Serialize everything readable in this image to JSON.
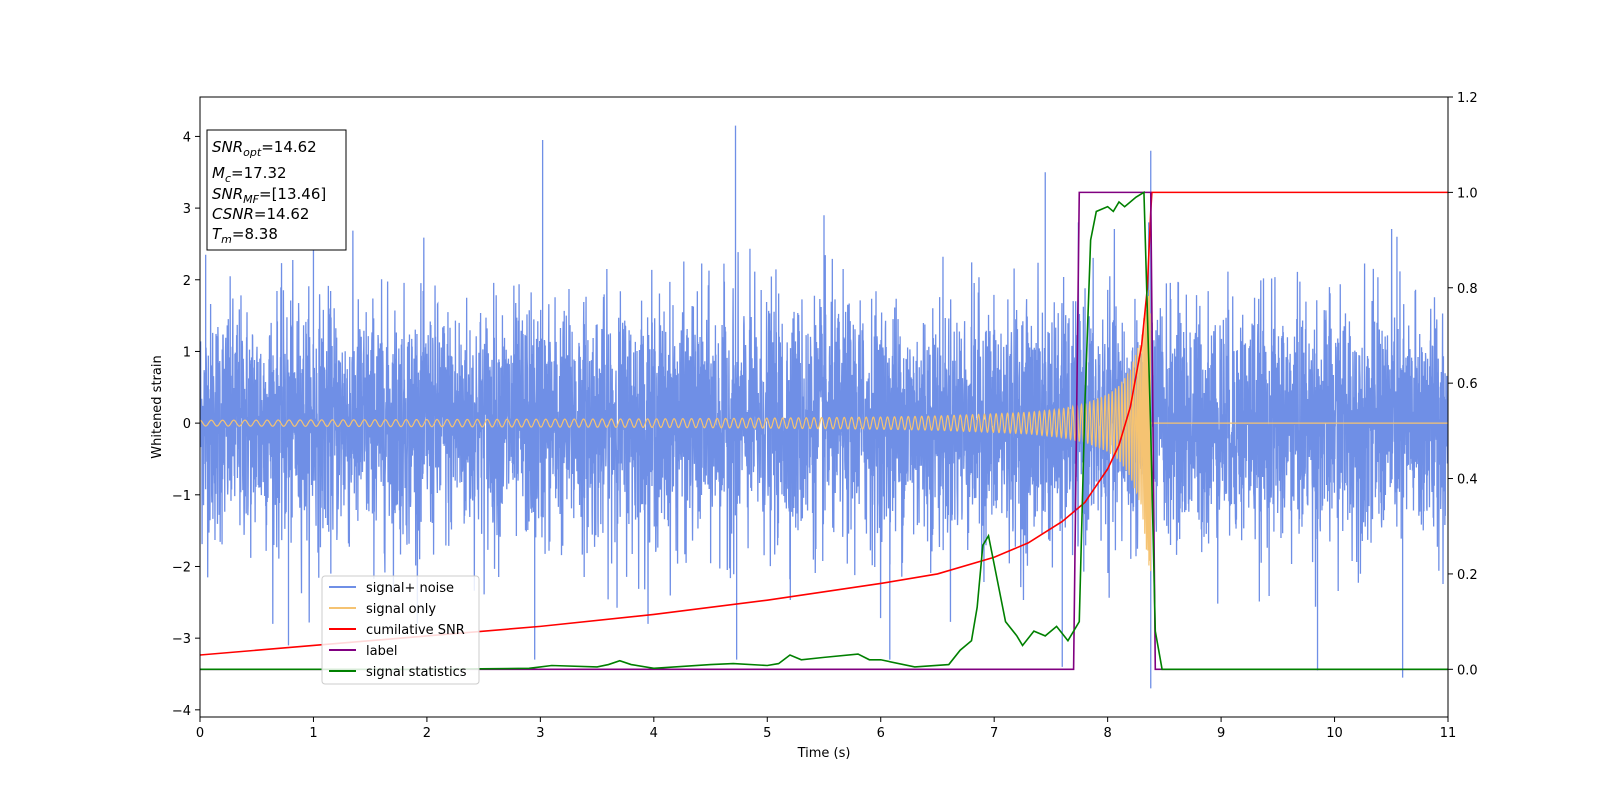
{
  "chart_data": {
    "type": "line",
    "title": "",
    "xlabel": "Time (s)",
    "ylabel": "Whitened strain",
    "y2label": "",
    "xlim": [
      0,
      11
    ],
    "ylim": [
      -4.1,
      4.55
    ],
    "y2lim": [
      -0.1,
      1.2
    ],
    "xticks": [
      "0",
      "1",
      "2",
      "3",
      "4",
      "5",
      "6",
      "7",
      "8",
      "9",
      "10",
      "11"
    ],
    "yticks": [
      "−4",
      "−3",
      "−2",
      "−1",
      "0",
      "1",
      "2",
      "3",
      "4"
    ],
    "y2ticks": [
      "0.0",
      "0.2",
      "0.4",
      "0.6",
      "0.8",
      "1.0",
      "1.2"
    ],
    "grid": false,
    "legend_position": "lower-left",
    "info_box": {
      "lines": [
        {
          "sym": "SNR",
          "sub": "opt",
          "value": "=14.62"
        },
        {
          "sym": "M",
          "sub": "c",
          "value": "=17.32"
        },
        {
          "sym": "SNR",
          "sub": "MF",
          "value": "=[13.46]"
        },
        {
          "sym": "CSNR",
          "sub": "",
          "value": "=14.62"
        },
        {
          "sym": "T",
          "sub": "m",
          "value": "=8.38"
        }
      ]
    },
    "series": [
      {
        "name": "signal+ noise",
        "axis": "left",
        "color": "#6f8fe6",
        "noise_sigma": 1.0,
        "x_range": [
          0,
          11
        ],
        "peaks": [
          [
            0.05,
            2.35
          ],
          [
            1.0,
            2.6
          ],
          [
            3.02,
            3.95
          ],
          [
            4.72,
            4.15
          ],
          [
            5.5,
            2.9
          ],
          [
            7.45,
            3.5
          ],
          [
            8.38,
            3.8
          ],
          [
            10.55,
            2.6
          ],
          [
            0.78,
            -3.1
          ],
          [
            2.95,
            -3.3
          ],
          [
            4.73,
            -3.3
          ],
          [
            6.08,
            -3.3
          ],
          [
            7.6,
            -3.4
          ],
          [
            8.38,
            -3.7
          ],
          [
            9.85,
            -3.45
          ],
          [
            10.6,
            -3.55
          ]
        ]
      },
      {
        "name": "signal only",
        "axis": "left",
        "color": "#f5c372",
        "x": [
          0,
          1,
          2,
          3,
          4,
          5,
          6,
          6.5,
          7,
          7.3,
          7.6,
          7.8,
          8.0,
          8.1,
          8.2,
          8.3,
          8.38,
          8.4,
          11
        ],
        "amplitude": [
          0.04,
          0.045,
          0.05,
          0.055,
          0.06,
          0.07,
          0.085,
          0.1,
          0.13,
          0.15,
          0.2,
          0.27,
          0.4,
          0.52,
          0.75,
          1.2,
          2.3,
          0,
          0
        ],
        "merger_time": 8.38
      },
      {
        "name": "cumilative SNR",
        "axis": "right",
        "color": "#ff0000",
        "x": [
          0,
          1,
          2,
          3,
          4,
          5,
          6,
          6.5,
          7,
          7.3,
          7.6,
          7.8,
          8.0,
          8.1,
          8.2,
          8.3,
          8.35,
          8.38,
          8.39,
          11
        ],
        "values": [
          0.03,
          0.05,
          0.07,
          0.09,
          0.115,
          0.145,
          0.18,
          0.2,
          0.235,
          0.265,
          0.31,
          0.35,
          0.42,
          0.47,
          0.55,
          0.68,
          0.8,
          0.96,
          1.0,
          1.0
        ]
      },
      {
        "name": "label",
        "axis": "right",
        "color": "#800080",
        "x": [
          0,
          7.7,
          7.75,
          8.38,
          8.42,
          11
        ],
        "values": [
          0,
          0,
          1,
          1,
          0,
          0
        ]
      },
      {
        "name": "signal statistics",
        "axis": "right",
        "color": "#008000",
        "x": [
          0,
          1,
          2,
          2.9,
          3.0,
          3.1,
          3.5,
          3.6,
          3.7,
          3.8,
          4.0,
          4.5,
          4.7,
          5.0,
          5.1,
          5.2,
          5.3,
          5.5,
          5.8,
          5.9,
          6.0,
          6.3,
          6.6,
          6.7,
          6.8,
          6.85,
          6.9,
          6.95,
          7.0,
          7.1,
          7.2,
          7.25,
          7.35,
          7.45,
          7.55,
          7.65,
          7.75,
          7.8,
          7.85,
          7.9,
          8.0,
          8.05,
          8.1,
          8.15,
          8.25,
          8.32,
          8.38,
          8.42,
          8.48,
          11
        ],
        "values": [
          0,
          0,
          0,
          0.002,
          0.005,
          0.008,
          0.005,
          0.01,
          0.018,
          0.01,
          0.002,
          0.01,
          0.012,
          0.008,
          0.012,
          0.03,
          0.02,
          0.025,
          0.032,
          0.02,
          0.02,
          0.005,
          0.01,
          0.04,
          0.06,
          0.13,
          0.26,
          0.28,
          0.22,
          0.1,
          0.07,
          0.05,
          0.08,
          0.07,
          0.09,
          0.06,
          0.1,
          0.56,
          0.9,
          0.96,
          0.97,
          0.96,
          0.98,
          0.97,
          0.99,
          1.0,
          0.5,
          0.08,
          0,
          0
        ]
      }
    ]
  }
}
